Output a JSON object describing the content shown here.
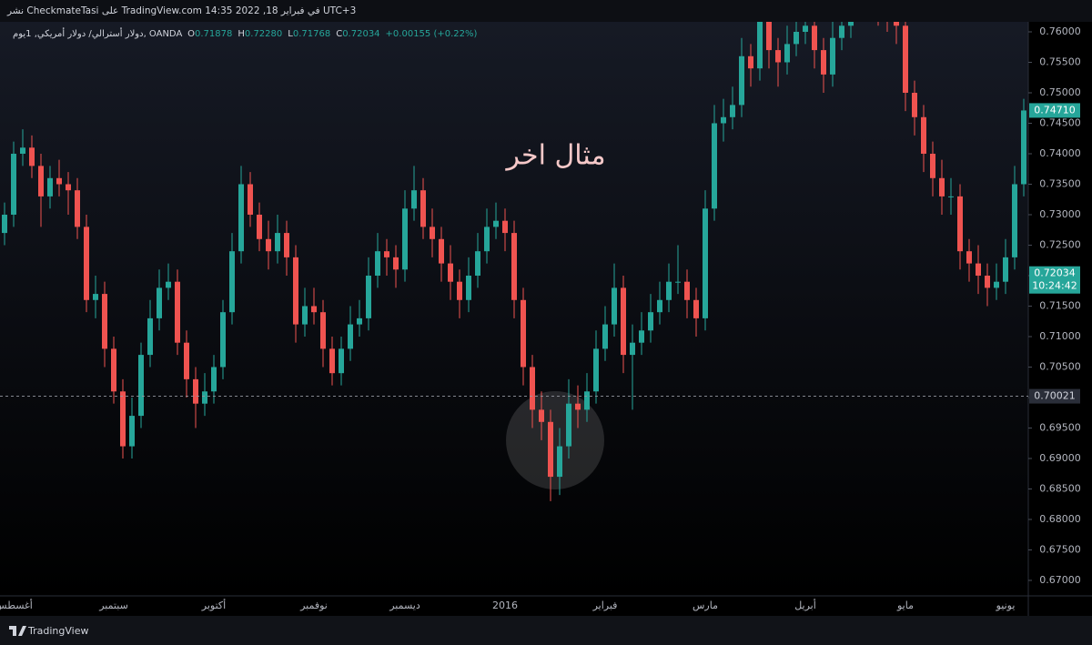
{
  "chart_data": {
    "type": "candlestick",
    "header": "نشر CheckmateTasi على TradingView.com 14:35 2022 ,18 في فبراير UTC+3",
    "symbol": "دولار أسترالي/ دولار أمريكي, 1يوم, OANDA",
    "ohlc_legend": [
      {
        "label": "O",
        "value": "0.71878"
      },
      {
        "label": "H",
        "value": "0.72280"
      },
      {
        "label": "L",
        "value": "0.71768"
      },
      {
        "label": "C",
        "value": "0.72034"
      }
    ],
    "change": "+0.00155 (+0.22%)",
    "annotation": "مثال اخر",
    "brand": "TradingView",
    "up_color": "#26a69a",
    "down_color": "#ef5350",
    "ylim": [
      0.66746,
      0.76164
    ],
    "yticks": [
      {
        "value": 0.67,
        "label": "0.67000"
      },
      {
        "value": 0.675,
        "label": "0.67500"
      },
      {
        "value": 0.68,
        "label": "0.68000"
      },
      {
        "value": 0.685,
        "label": "0.68500"
      },
      {
        "value": 0.69,
        "label": "0.69000"
      },
      {
        "value": 0.695,
        "label": "0.69500"
      },
      {
        "value": 0.7,
        "label": "0.70000"
      },
      {
        "value": 0.705,
        "label": "0.70500"
      },
      {
        "value": 0.71,
        "label": "0.71000"
      },
      {
        "value": 0.715,
        "label": "0.71500"
      },
      {
        "value": 0.72,
        "label": "0.72000"
      },
      {
        "value": 0.725,
        "label": "0.72500"
      },
      {
        "value": 0.73,
        "label": "0.73000"
      },
      {
        "value": 0.735,
        "label": "0.73500"
      },
      {
        "value": 0.74,
        "label": "0.74000"
      },
      {
        "value": 0.745,
        "label": "0.74500"
      },
      {
        "value": 0.75,
        "label": "0.75000"
      },
      {
        "value": 0.755,
        "label": "0.75500"
      },
      {
        "value": 0.76,
        "label": "0.76000"
      }
    ],
    "horizontal_line": {
      "value": 0.70021,
      "label": "0.70021"
    },
    "marker": {
      "value": 0.7471,
      "label": "0.74710"
    },
    "last_price": {
      "value": 0.72034,
      "label": "0.72034",
      "countdown": "10:24:42"
    },
    "categories": [
      null,
      "أغسطس",
      null,
      null,
      null,
      null,
      null,
      null,
      null,
      null,
      null,
      null,
      "سبتمبر",
      null,
      null,
      null,
      null,
      null,
      null,
      null,
      null,
      null,
      null,
      "أكتوبر",
      null,
      null,
      null,
      null,
      null,
      null,
      null,
      null,
      null,
      null,
      "نوفمبر",
      null,
      null,
      null,
      null,
      null,
      null,
      null,
      null,
      null,
      "ديسمبر",
      null,
      null,
      null,
      null,
      null,
      null,
      null,
      null,
      null,
      null,
      "2016",
      null,
      null,
      null,
      null,
      null,
      null,
      null,
      null,
      null,
      null,
      "فبراير",
      null,
      null,
      null,
      null,
      null,
      null,
      null,
      null,
      null,
      null,
      "مارس",
      null,
      null,
      null,
      null,
      null,
      null,
      null,
      null,
      null,
      null,
      "أبريل",
      null,
      null,
      null,
      null,
      null,
      null,
      null,
      null,
      null,
      null,
      "مايو",
      null,
      null,
      null,
      null,
      null,
      null,
      null,
      null,
      null,
      null,
      "يونيو",
      null,
      null
    ],
    "open": [
      0.727,
      0.73,
      0.74,
      0.741,
      0.738,
      0.733,
      0.736,
      0.735,
      0.734,
      0.728,
      0.716,
      0.717,
      0.708,
      0.701,
      0.692,
      0.697,
      0.707,
      0.713,
      0.718,
      0.719,
      0.709,
      0.703,
      0.699,
      0.701,
      0.705,
      0.714,
      0.724,
      0.735,
      0.73,
      0.726,
      0.724,
      0.727,
      0.723,
      0.712,
      0.715,
      0.714,
      0.708,
      0.704,
      0.708,
      0.712,
      0.713,
      0.72,
      0.724,
      0.723,
      0.721,
      0.731,
      0.734,
      0.728,
      0.726,
      0.722,
      0.719,
      0.716,
      0.72,
      0.724,
      0.728,
      0.729,
      0.727,
      0.716,
      0.705,
      0.698,
      0.696,
      0.687,
      0.692,
      0.699,
      0.698,
      0.701,
      0.708,
      0.712,
      0.718,
      0.707,
      0.709,
      0.711,
      0.714,
      0.716,
      0.719,
      0.719,
      0.716,
      0.713,
      0.731,
      0.745,
      0.746,
      0.748,
      0.756,
      0.754,
      0.762,
      0.757,
      0.755,
      0.758,
      0.76,
      0.761,
      0.757,
      0.753,
      0.759,
      0.761,
      0.765,
      0.768,
      0.767,
      0.764,
      0.763,
      0.761,
      0.75,
      0.746,
      0.74,
      0.736,
      0.733,
      0.733,
      0.724,
      0.722,
      0.72,
      0.718,
      0.719,
      0.723,
      0.735
    ],
    "high": [
      0.732,
      0.742,
      0.744,
      0.743,
      0.74,
      0.738,
      0.739,
      0.737,
      0.736,
      0.73,
      0.72,
      0.719,
      0.71,
      0.703,
      0.7,
      0.709,
      0.716,
      0.721,
      0.722,
      0.721,
      0.711,
      0.705,
      0.704,
      0.707,
      0.716,
      0.727,
      0.738,
      0.737,
      0.732,
      0.729,
      0.73,
      0.729,
      0.725,
      0.718,
      0.718,
      0.716,
      0.71,
      0.71,
      0.715,
      0.716,
      0.723,
      0.727,
      0.726,
      0.725,
      0.734,
      0.738,
      0.736,
      0.731,
      0.728,
      0.725,
      0.721,
      0.723,
      0.727,
      0.731,
      0.732,
      0.731,
      0.729,
      0.718,
      0.707,
      0.701,
      0.698,
      0.695,
      0.703,
      0.702,
      0.704,
      0.711,
      0.715,
      0.722,
      0.72,
      0.712,
      0.714,
      0.717,
      0.719,
      0.722,
      0.725,
      0.721,
      0.718,
      0.734,
      0.748,
      0.749,
      0.751,
      0.759,
      0.758,
      0.765,
      0.764,
      0.759,
      0.761,
      0.763,
      0.764,
      0.763,
      0.759,
      0.762,
      0.764,
      0.768,
      0.771,
      0.77,
      0.769,
      0.766,
      0.765,
      0.763,
      0.752,
      0.748,
      0.742,
      0.739,
      0.736,
      0.735,
      0.726,
      0.725,
      0.722,
      0.722,
      0.726,
      0.738,
      0.749
    ],
    "low": [
      0.725,
      0.728,
      0.738,
      0.736,
      0.728,
      0.731,
      0.733,
      0.73,
      0.726,
      0.714,
      0.713,
      0.705,
      0.699,
      0.69,
      0.69,
      0.695,
      0.705,
      0.711,
      0.716,
      0.707,
      0.7,
      0.695,
      0.697,
      0.699,
      0.703,
      0.712,
      0.722,
      0.728,
      0.724,
      0.721,
      0.722,
      0.72,
      0.709,
      0.71,
      0.712,
      0.705,
      0.702,
      0.702,
      0.706,
      0.71,
      0.711,
      0.718,
      0.72,
      0.718,
      0.719,
      0.729,
      0.726,
      0.723,
      0.719,
      0.716,
      0.713,
      0.714,
      0.718,
      0.722,
      0.726,
      0.724,
      0.713,
      0.702,
      0.695,
      0.693,
      0.683,
      0.684,
      0.69,
      0.695,
      0.696,
      0.699,
      0.706,
      0.71,
      0.704,
      0.698,
      0.707,
      0.709,
      0.712,
      0.714,
      0.717,
      0.713,
      0.71,
      0.711,
      0.729,
      0.742,
      0.744,
      0.746,
      0.751,
      0.752,
      0.754,
      0.751,
      0.753,
      0.756,
      0.758,
      0.754,
      0.75,
      0.751,
      0.757,
      0.759,
      0.763,
      0.764,
      0.761,
      0.76,
      0.758,
      0.747,
      0.743,
      0.737,
      0.733,
      0.73,
      0.73,
      0.721,
      0.719,
      0.717,
      0.715,
      0.716,
      0.717,
      0.721,
      0.733
    ],
    "close": [
      0.73,
      0.74,
      0.741,
      0.738,
      0.733,
      0.736,
      0.735,
      0.734,
      0.728,
      0.716,
      0.717,
      0.708,
      0.701,
      0.692,
      0.697,
      0.707,
      0.713,
      0.718,
      0.719,
      0.709,
      0.703,
      0.699,
      0.701,
      0.705,
      0.714,
      0.724,
      0.735,
      0.73,
      0.726,
      0.724,
      0.727,
      0.723,
      0.712,
      0.715,
      0.714,
      0.708,
      0.704,
      0.708,
      0.712,
      0.713,
      0.72,
      0.724,
      0.723,
      0.721,
      0.731,
      0.734,
      0.728,
      0.726,
      0.722,
      0.719,
      0.716,
      0.72,
      0.724,
      0.728,
      0.729,
      0.727,
      0.716,
      0.705,
      0.698,
      0.696,
      0.687,
      0.692,
      0.699,
      0.698,
      0.701,
      0.708,
      0.712,
      0.718,
      0.707,
      0.709,
      0.711,
      0.714,
      0.716,
      0.719,
      0.719,
      0.716,
      0.713,
      0.731,
      0.745,
      0.746,
      0.748,
      0.756,
      0.754,
      0.762,
      0.757,
      0.755,
      0.758,
      0.76,
      0.761,
      0.757,
      0.753,
      0.759,
      0.761,
      0.765,
      0.768,
      0.767,
      0.764,
      0.763,
      0.761,
      0.75,
      0.746,
      0.74,
      0.736,
      0.733,
      0.733,
      0.724,
      0.722,
      0.72,
      0.718,
      0.719,
      0.723,
      0.735,
      0.7471
    ]
  }
}
